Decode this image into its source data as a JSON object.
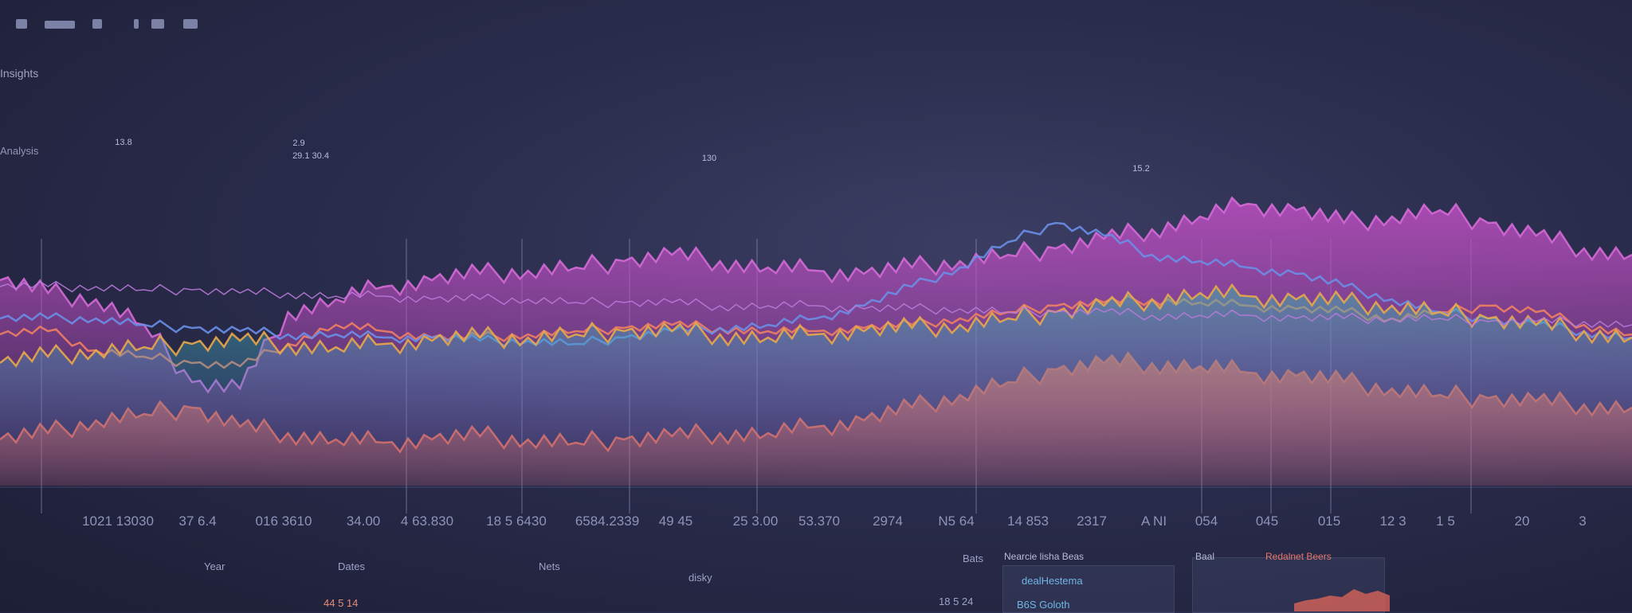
{
  "toolbar": {
    "icons": [
      "bell-icon",
      "window-icon",
      "grid-icon",
      "bookmark-icon",
      "folder-icon",
      "user-icon"
    ]
  },
  "page_title": "Insights",
  "sub_label": "Analysis",
  "colors": {
    "background": "#2a2c4c",
    "magenta": "#c04fc4",
    "coral": "#f06a5a",
    "blue": "#4d7fe0",
    "teal": "#3fb5a8",
    "orange": "#e8a84a",
    "violet": "#b87ad8"
  },
  "chart_data": {
    "type": "area",
    "title": "",
    "xlabel": "",
    "ylabel": "",
    "ylim": [
      0,
      100
    ],
    "x_labels": [
      "1021 13030",
      "37 6.4",
      "016 3610",
      "34.00",
      "4 63.830",
      "18 5 6430",
      "6584.2339",
      "49 45",
      "25 3.00",
      "53.370",
      "2974",
      "N5 64",
      "14 853",
      "2317",
      "A NI",
      "054",
      "045",
      "015",
      "12 3",
      "1 5",
      "20",
      "3"
    ],
    "value_labels": [
      {
        "text": "2.9",
        "series": "violet trend"
      },
      {
        "text": "29.1 30.4",
        "series": "violet trend"
      },
      {
        "text": "130",
        "series": "violet trend"
      },
      {
        "text": "13.8",
        "series": "violet trend"
      },
      {
        "text": "15.2",
        "series": "violet trend"
      }
    ],
    "series": [
      {
        "values": [
          62,
          58,
          56,
          48,
          30,
          28,
          52,
          56,
          60,
          62,
          64,
          65,
          66,
          68,
          70,
          68,
          66,
          65,
          64,
          66,
          68,
          70,
          72,
          75,
          78,
          82,
          86,
          84,
          80,
          82,
          84,
          80,
          76,
          72,
          70
        ]
      },
      {
        "values": [
          45,
          46,
          40,
          38,
          36,
          35,
          42,
          48,
          46,
          44,
          44,
          45,
          46,
          47,
          48,
          47,
          46,
          46,
          47,
          48,
          50,
          52,
          54,
          55,
          56,
          55,
          54,
          53,
          52,
          50,
          52,
          54,
          52,
          48,
          45
        ]
      },
      {
        "values": [
          12,
          14,
          18,
          20,
          22,
          16,
          14,
          12,
          11,
          12,
          13,
          12,
          11,
          12,
          13,
          14,
          14,
          16,
          18,
          22,
          26,
          30,
          34,
          36,
          36,
          35,
          33,
          32,
          30,
          28,
          26,
          25,
          24,
          23,
          22
        ]
      },
      {
        "values": [
          50,
          50,
          50,
          48,
          47,
          46,
          45,
          45,
          44,
          44,
          43,
          43,
          42,
          44,
          46,
          47,
          48,
          50,
          54,
          60,
          66,
          74,
          80,
          76,
          70,
          68,
          66,
          64,
          60,
          56,
          52,
          50,
          48,
          46,
          44
        ]
      },
      {
        "values": [
          36,
          38,
          40,
          41,
          42,
          43,
          42,
          41,
          42,
          43,
          44,
          44,
          45,
          46,
          46,
          45,
          44,
          45,
          46,
          47,
          48,
          50,
          52,
          54,
          56,
          58,
          57,
          56,
          55,
          54,
          52,
          50,
          48,
          46,
          44
        ]
      },
      {
        "values": [
          60,
          60,
          60,
          59,
          59,
          58,
          58,
          57,
          57,
          56,
          56,
          56,
          55,
          55,
          55,
          54,
          54,
          54,
          53,
          53,
          53,
          52,
          52,
          52,
          51,
          51,
          51,
          50,
          50,
          50,
          50,
          49,
          49,
          49,
          48
        ]
      }
    ]
  },
  "bottom_labels": [
    {
      "text": "Year"
    },
    {
      "text": "Dates"
    },
    {
      "text": "Nets"
    },
    {
      "text": "disky"
    },
    {
      "text": "44 5 14"
    },
    {
      "text": "Bats"
    },
    {
      "text": "18 5 24"
    }
  ],
  "panels": [
    {
      "title": "Nearcie lisha Beas",
      "link": "dealHestema",
      "sub": "B6S Goloth"
    },
    {
      "title": "Baal",
      "link": "",
      "sub": ""
    },
    {
      "title": "Redalnet Beers",
      "link": "",
      "sub": ""
    }
  ]
}
